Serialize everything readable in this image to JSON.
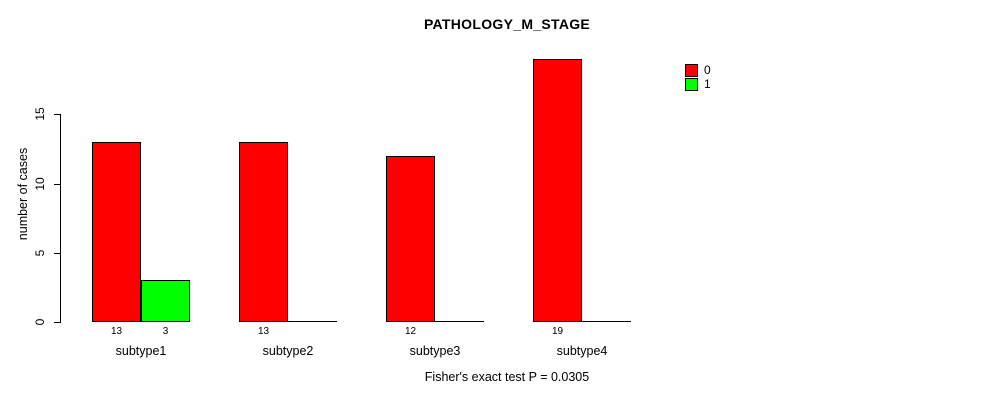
{
  "chart_data": {
    "type": "bar",
    "title": "PATHOLOGY_M_STAGE",
    "xlabel": "",
    "ylabel": "number of cases",
    "categories": [
      "subtype1",
      "subtype2",
      "subtype3",
      "subtype4"
    ],
    "series": [
      {
        "name": "0",
        "color": "#ff0000",
        "values": [
          13,
          13,
          12,
          19
        ]
      },
      {
        "name": "1",
        "color": "#00ff00",
        "values": [
          3,
          0,
          0,
          0
        ]
      }
    ],
    "yticks": [
      0,
      5,
      10,
      15
    ],
    "ylim": [
      0,
      19
    ],
    "grid": false,
    "bar_value_labels": "values shown under each bar when greater than zero",
    "legend": {
      "position": "top-right",
      "entries": [
        {
          "label": "0",
          "color": "#ff0000"
        },
        {
          "label": "1",
          "color": "#00ff00"
        }
      ]
    },
    "annotations": [
      "Fisher's exact test P = 0.0305"
    ]
  }
}
